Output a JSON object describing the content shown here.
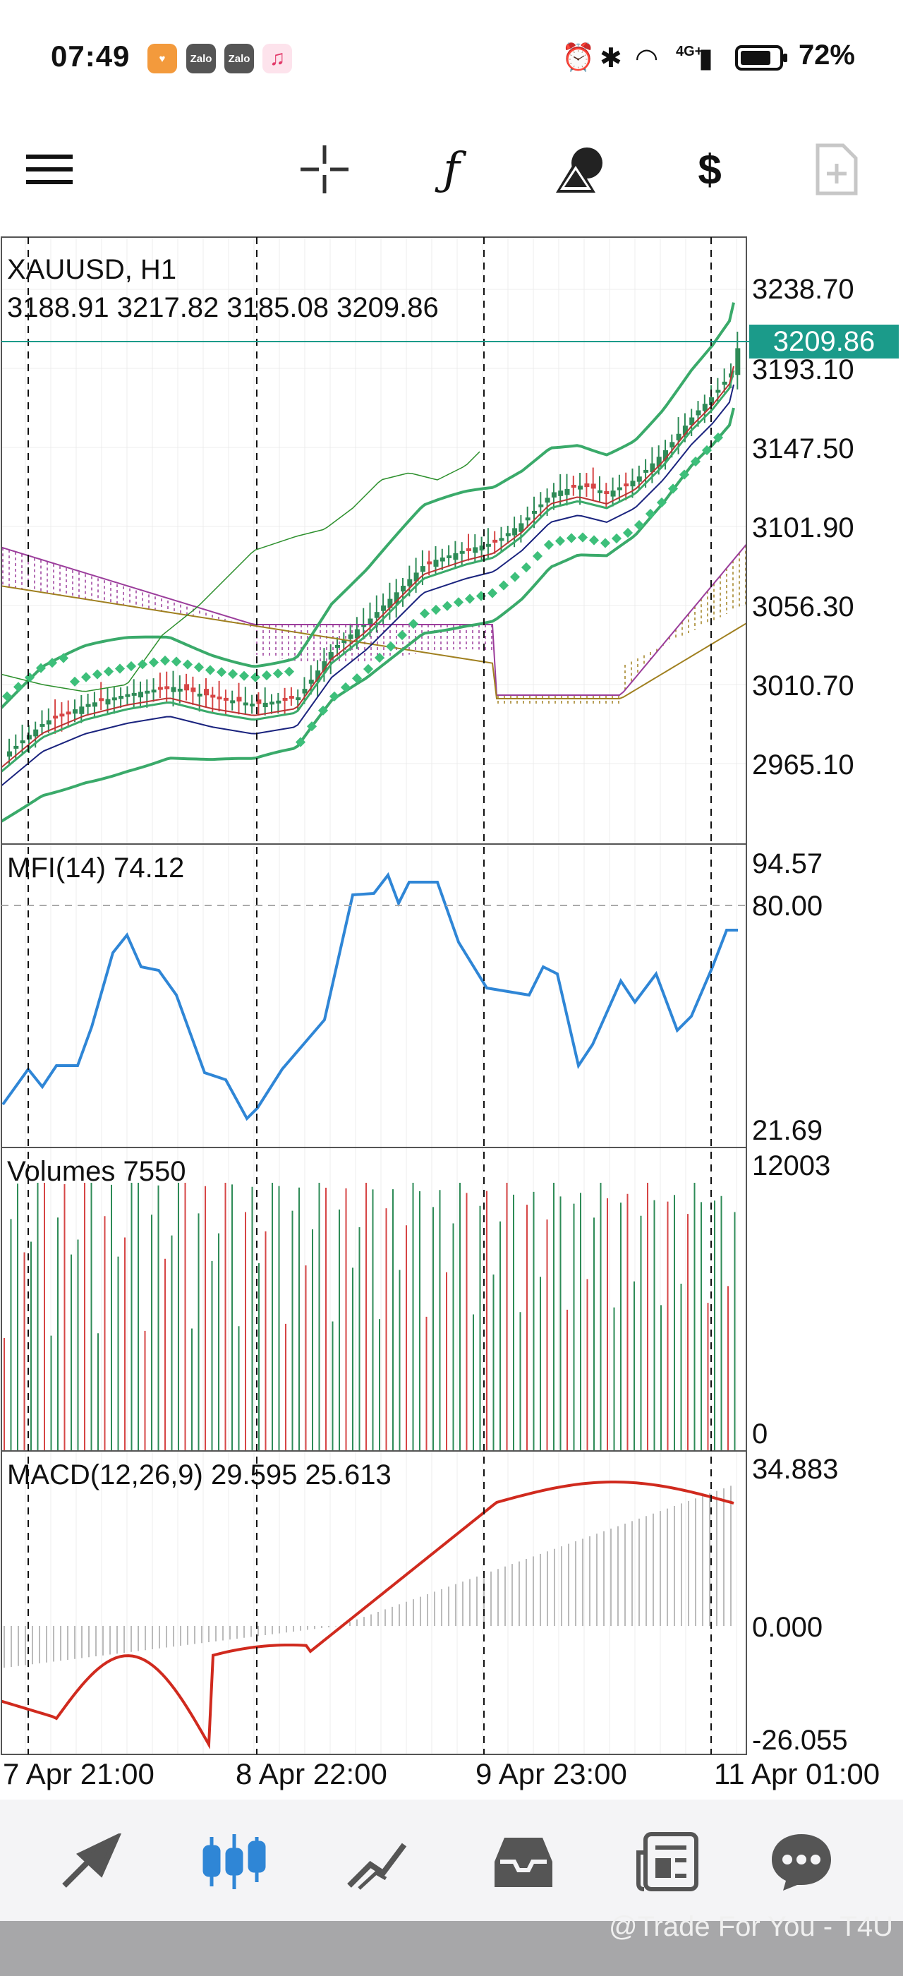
{
  "status_bar": {
    "time": "07:49",
    "app_icons": [
      "shield-app-icon",
      "zalo-icon",
      "zalo-icon",
      "music-icon"
    ],
    "zalo_label": "Zalo",
    "signal_label": "4G+",
    "battery": "72%"
  },
  "toolbar": {
    "items": [
      "menu-icon",
      "crosshair-icon",
      "function-icon",
      "objects-icon",
      "price-change-icon",
      "new-order-icon"
    ]
  },
  "chart": {
    "symbol_line": "XAUUSD, H1",
    "ohlc_line": "3188.91 3217.82 3185.08 3209.86",
    "current_price": "3209.86",
    "price_axis": [
      "3238.70",
      "3193.10",
      "3147.50",
      "3101.90",
      "3056.30",
      "3010.70",
      "2965.10"
    ],
    "mfi_label": "MFI(14) 74.12",
    "mfi_axis": [
      "94.57",
      "80.00",
      "21.69"
    ],
    "volumes_label": "Volumes 7550",
    "volumes_axis": [
      "12003",
      "0"
    ],
    "macd_label": "MACD(12,26,9) 29.595 25.613",
    "macd_axis": [
      "34.883",
      "0.000",
      "-26.055"
    ],
    "time_axis": [
      "7 Apr 21:00",
      "8 Apr 22:00",
      "9 Apr 23:00",
      "11 Apr 01:00"
    ],
    "colors": {
      "up": "#2e8b57",
      "down": "#d64545",
      "mfi": "#2f86d6",
      "macd": "#d02a1e",
      "bollinger": "#3aaa6a",
      "sar": "#3dbf7a",
      "tag": "#1b9b8a"
    }
  },
  "bottom_nav": {
    "items": [
      "quotes-icon",
      "chart-icon",
      "trade-icon",
      "history-icon",
      "news-icon",
      "chat-icon"
    ],
    "active": "chart-icon"
  },
  "watermark": "@Trade For You - T4U"
}
